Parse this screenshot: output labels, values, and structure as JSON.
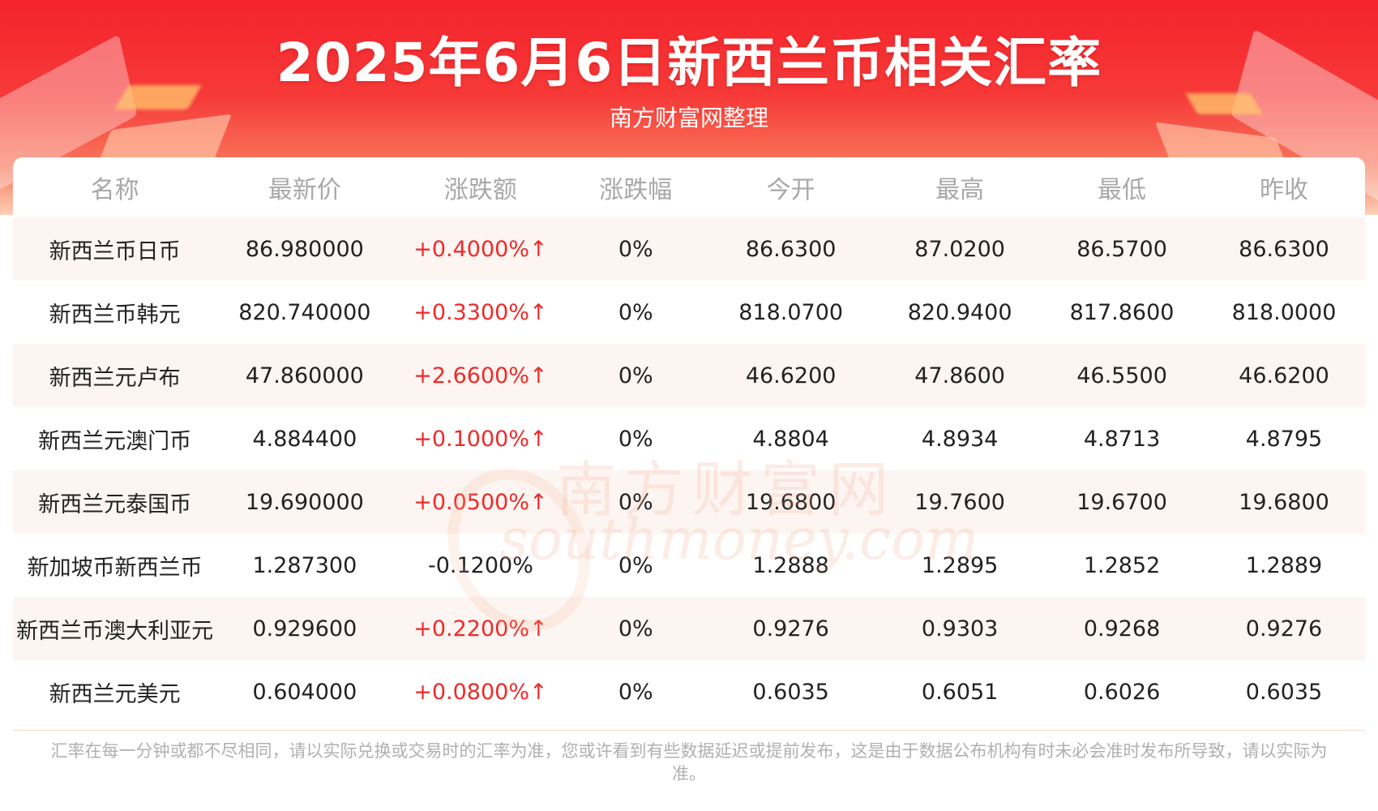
{
  "header": {
    "title": "2025年6月6日新西兰币相关汇率",
    "subtitle": "南方财富网整理"
  },
  "watermark": {
    "cn": "南方财富网",
    "en": "southmoney.com"
  },
  "colors": {
    "banner_red": "#f4232c",
    "up": "#ee2a2a",
    "header_text": "#a8a8a8",
    "stripe": "#fdf5f1"
  },
  "table": {
    "columns": [
      "名称",
      "最新价",
      "涨跌额",
      "涨跌幅",
      "今开",
      "最高",
      "最低",
      "昨收"
    ],
    "rows": [
      {
        "name": "新西兰币日币",
        "latest": "86.980000",
        "change": "+0.4000%↑",
        "direction": "up",
        "pct": "0%",
        "open": "86.6300",
        "high": "87.0200",
        "low": "86.5700",
        "prev_close": "86.6300"
      },
      {
        "name": "新西兰币韩元",
        "latest": "820.740000",
        "change": "+0.3300%↑",
        "direction": "up",
        "pct": "0%",
        "open": "818.0700",
        "high": "820.9400",
        "low": "817.8600",
        "prev_close": "818.0000"
      },
      {
        "name": "新西兰元卢布",
        "latest": "47.860000",
        "change": "+2.6600%↑",
        "direction": "up",
        "pct": "0%",
        "open": "46.6200",
        "high": "47.8600",
        "low": "46.5500",
        "prev_close": "46.6200"
      },
      {
        "name": "新西兰元澳门币",
        "latest": "4.884400",
        "change": "+0.1000%↑",
        "direction": "up",
        "pct": "0%",
        "open": "4.8804",
        "high": "4.8934",
        "low": "4.8713",
        "prev_close": "4.8795"
      },
      {
        "name": "新西兰元泰国币",
        "latest": "19.690000",
        "change": "+0.0500%↑",
        "direction": "up",
        "pct": "0%",
        "open": "19.6800",
        "high": "19.7600",
        "low": "19.6700",
        "prev_close": "19.6800"
      },
      {
        "name": "新加坡币新西兰币",
        "latest": "1.287300",
        "change": "-0.1200%",
        "direction": "down",
        "pct": "0%",
        "open": "1.2888",
        "high": "1.2895",
        "low": "1.2852",
        "prev_close": "1.2889"
      },
      {
        "name": "新西兰币澳大利亚元",
        "latest": "0.929600",
        "change": "+0.2200%↑",
        "direction": "up",
        "pct": "0%",
        "open": "0.9276",
        "high": "0.9303",
        "low": "0.9268",
        "prev_close": "0.9276"
      },
      {
        "name": "新西兰元美元",
        "latest": "0.604000",
        "change": "+0.0800%↑",
        "direction": "up",
        "pct": "0%",
        "open": "0.6035",
        "high": "0.6051",
        "low": "0.6026",
        "prev_close": "0.6035"
      }
    ]
  },
  "footer": {
    "disclaimer": "汇率在每一分钟或都不尽相同，请以实际兑换或交易时的汇率为准，您或许看到有些数据延迟或提前发布，这是由于数据公布机构有时未必会准时发布所导致，请以实际为准。"
  }
}
